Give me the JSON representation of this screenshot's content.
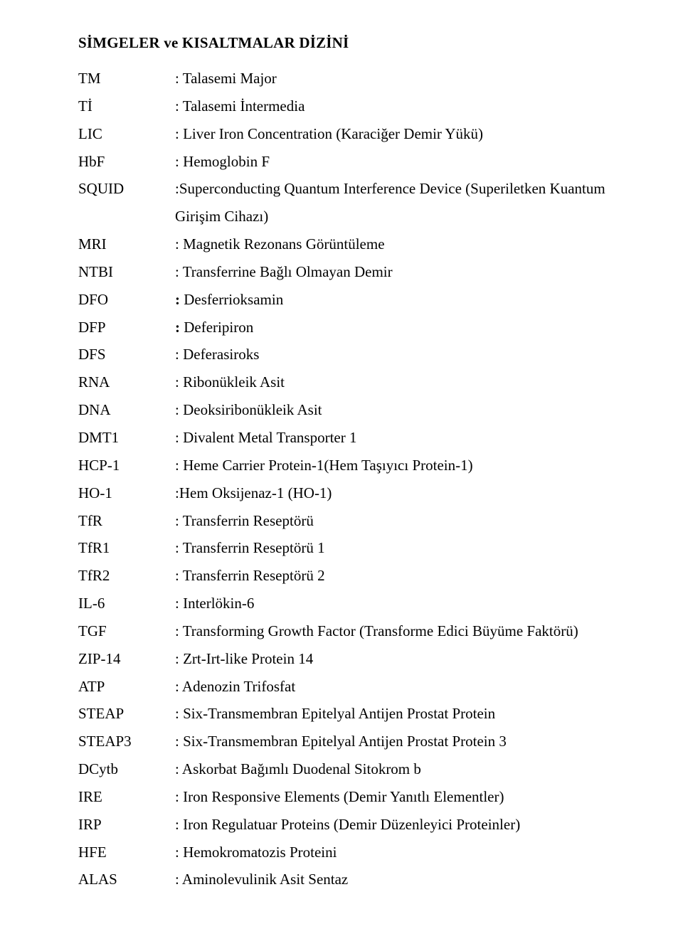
{
  "title": "SİMGELER ve KISALTMALAR DİZİNİ",
  "entries": [
    {
      "abbr": "TM",
      "def": ": Talasemi Major"
    },
    {
      "abbr": "Tİ",
      "def": ": Talasemi İntermedia"
    },
    {
      "abbr": "LIC",
      "def": ": Liver Iron Concentration (Karaciğer Demir Yükü)"
    },
    {
      "abbr": "HbF",
      "def": ": Hemoglobin F"
    },
    {
      "abbr": "SQUID",
      "def": ":Superconducting Quantum Interference Device (Superiletken Kuantum Girişim Cihazı)"
    },
    {
      "abbr": "MRI",
      "def": ": Magnetik Rezonans Görüntüleme"
    },
    {
      "abbr": "NTBI",
      "def": ": Transferrine Bağlı Olmayan Demir"
    },
    {
      "abbr": "DFO",
      "def": ": Desferrioksamin",
      "bold_colon": true
    },
    {
      "abbr": "DFP",
      "def": ": Deferipiron",
      "bold_colon": true
    },
    {
      "abbr": "DFS",
      "def": ": Deferasiroks"
    },
    {
      "abbr": "RNA",
      "def": ": Ribonükleik Asit"
    },
    {
      "abbr": "DNA",
      "def": ": Deoksiribonükleik Asit"
    },
    {
      "abbr": "DMT1",
      "def": ": Divalent Metal Transporter 1"
    },
    {
      "abbr": "HCP-1",
      "def": ": Heme Carrier Protein-1(Hem Taşıyıcı Protein-1)"
    },
    {
      "abbr": "HO-1",
      "def": ":Hem Oksijenaz-1 (HO-1)"
    },
    {
      "abbr": "TfR",
      "def": ": Transferrin Reseptörü"
    },
    {
      "abbr": "TfR1",
      "def": ": Transferrin Reseptörü 1"
    },
    {
      "abbr": "TfR2",
      "def": ": Transferrin Reseptörü 2"
    },
    {
      "abbr": "IL-6",
      "def": ": Interlökin-6"
    },
    {
      "abbr": "TGF",
      "def": ": Transforming Growth Factor (Transforme Edici Büyüme Faktörü)"
    },
    {
      "abbr": "ZIP-14",
      "def": ": Zrt-Irt-like Protein 14"
    },
    {
      "abbr": "ATP",
      "def": ": Adenozin Trifosfat"
    },
    {
      "abbr": "STEAP",
      "def": ": Six-Transmembran Epitelyal Antijen Prostat Protein"
    },
    {
      "abbr": "STEAP3",
      "def": ": Six-Transmembran Epitelyal Antijen Prostat Protein 3"
    },
    {
      "abbr": "DCytb",
      "def": ": Askorbat Bağımlı Duodenal Sitokrom b"
    },
    {
      "abbr": "IRE",
      "def": ": Iron Responsive Elements (Demir Yanıtlı Elementler)"
    },
    {
      "abbr": "IRP",
      "def": ": Iron Regulatuar Proteins (Demir Düzenleyici Proteinler)"
    },
    {
      "abbr": "HFE",
      "def": ": Hemokromatozis Proteini"
    },
    {
      "abbr": "ALAS",
      "def": ": Aminolevulinik Asit Sentaz"
    }
  ]
}
